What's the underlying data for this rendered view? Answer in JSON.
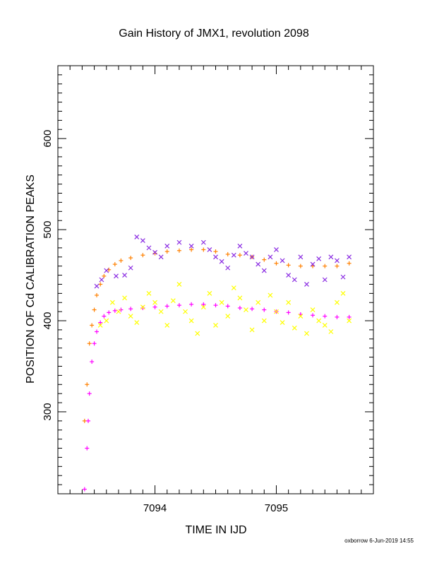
{
  "chart_data": {
    "type": "scatter",
    "title": "Gain History of JMX1, revolution 2098",
    "xlabel": "TIME IN IJD",
    "ylabel": "POSITION OF Cd CALIBRATION PEAKS",
    "footer": "oxborrow  6-Jun-2019 14:55",
    "xlim": [
      7093.2,
      7095.8
    ],
    "ylim": [
      210,
      680
    ],
    "x_major_ticks": [
      7094,
      7095
    ],
    "x_minor_step": 0.1,
    "y_major_ticks": [
      300,
      400,
      500,
      600
    ],
    "y_minor_step": 10,
    "x_tick_labels": [
      "7094",
      "7095"
    ],
    "y_tick_labels": [
      "300",
      "400",
      "500",
      "600"
    ],
    "grid": false,
    "legend": "none",
    "colors": {
      "orange": "#ff8000",
      "magenta": "#ff00ff",
      "purple": "#8a2be2",
      "yellow": "#ffff00"
    },
    "series": [
      {
        "color": "#ff8000",
        "marker": "plus",
        "x": [
          7093.42,
          7093.44,
          7093.46,
          7093.48,
          7093.5,
          7093.52,
          7093.55,
          7093.58,
          7093.62,
          7093.67,
          7093.72,
          7093.8,
          7093.9,
          7094.0,
          7094.1,
          7094.2,
          7094.3,
          7094.4,
          7094.5,
          7094.6,
          7094.7,
          7094.8,
          7094.9,
          7095.0,
          7095.1,
          7095.2,
          7095.3,
          7095.4,
          7095.5,
          7095.6
        ],
        "y": [
          290,
          330,
          375,
          395,
          412,
          428,
          440,
          449,
          456,
          462,
          466,
          469,
          472,
          474,
          476,
          477,
          478,
          478,
          476,
          473,
          472,
          470,
          467,
          463,
          461,
          460,
          460,
          460,
          460,
          463
        ]
      },
      {
        "color": "#ff00ff",
        "marker": "plus",
        "x": [
          7093.42,
          7093.44,
          7093.45,
          7093.46,
          7093.48,
          7093.5,
          7093.52,
          7093.55,
          7093.58,
          7093.62,
          7093.67,
          7093.72,
          7093.8,
          7093.9,
          7094.0,
          7094.1,
          7094.2,
          7094.3,
          7094.4,
          7094.5,
          7094.6,
          7094.7,
          7094.8,
          7094.9,
          7095.0,
          7095.1,
          7095.2,
          7095.3,
          7095.4,
          7095.5,
          7095.6
        ],
        "y": [
          215,
          260,
          290,
          320,
          355,
          375,
          388,
          398,
          405,
          409,
          411,
          412,
          413,
          414,
          415,
          416,
          417,
          418,
          418,
          417,
          416,
          414,
          413,
          412,
          410,
          409,
          407,
          406,
          405,
          404,
          404
        ]
      },
      {
        "color": "#8a2be2",
        "marker": "cross",
        "x": [
          7093.52,
          7093.56,
          7093.6,
          7093.68,
          7093.75,
          7093.8,
          7093.85,
          7093.9,
          7093.95,
          7094.0,
          7094.05,
          7094.1,
          7094.2,
          7094.3,
          7094.4,
          7094.45,
          7094.5,
          7094.55,
          7094.6,
          7094.65,
          7094.7,
          7094.75,
          7094.8,
          7094.85,
          7094.9,
          7094.95,
          7095.0,
          7095.05,
          7095.1,
          7095.15,
          7095.2,
          7095.25,
          7095.3,
          7095.35,
          7095.4,
          7095.45,
          7095.5,
          7095.55,
          7095.6
        ],
        "y": [
          438,
          445,
          455,
          449,
          450,
          458,
          492,
          488,
          480,
          475,
          470,
          482,
          486,
          482,
          486,
          478,
          470,
          465,
          458,
          472,
          482,
          474,
          470,
          462,
          455,
          470,
          478,
          466,
          450,
          445,
          470,
          440,
          462,
          468,
          445,
          470,
          466,
          448,
          470
        ]
      },
      {
        "color": "#ffff00",
        "marker": "cross",
        "x": [
          7093.55,
          7093.6,
          7093.65,
          7093.7,
          7093.75,
          7093.8,
          7093.85,
          7093.9,
          7093.95,
          7094.0,
          7094.05,
          7094.1,
          7094.15,
          7094.2,
          7094.25,
          7094.3,
          7094.35,
          7094.4,
          7094.45,
          7094.5,
          7094.55,
          7094.6,
          7094.65,
          7094.7,
          7094.75,
          7094.8,
          7094.85,
          7094.9,
          7094.95,
          7095.0,
          7095.05,
          7095.1,
          7095.15,
          7095.2,
          7095.25,
          7095.3,
          7095.35,
          7095.4,
          7095.45,
          7095.5,
          7095.55,
          7095.6
        ],
        "y": [
          395,
          400,
          420,
          410,
          425,
          405,
          398,
          415,
          430,
          420,
          410,
          395,
          422,
          440,
          410,
          400,
          386,
          415,
          430,
          395,
          420,
          405,
          436,
          425,
          412,
          390,
          420,
          400,
          428,
          410,
          398,
          420,
          392,
          405,
          386,
          412,
          400,
          395,
          388,
          420,
          430,
          400
        ]
      }
    ]
  }
}
